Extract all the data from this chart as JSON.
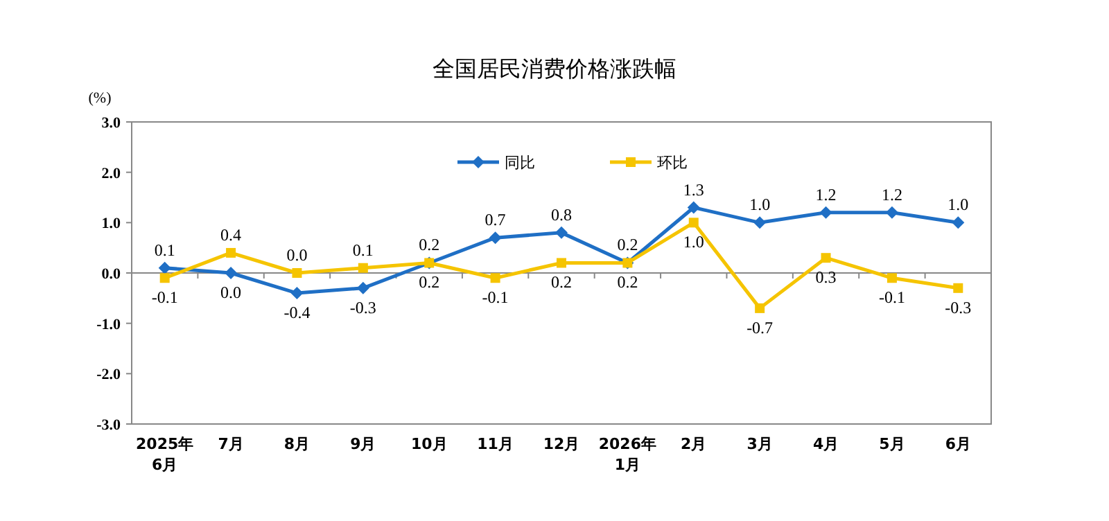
{
  "chart_data": {
    "type": "line",
    "title": "全国居民消费价格涨跌幅",
    "ylabel": "(%)",
    "categories": [
      "2025年\n6月",
      "7月",
      "8月",
      "9月",
      "10月",
      "11月",
      "12月",
      "2026年\n1月",
      "2月",
      "3月",
      "4月",
      "5月",
      "6月"
    ],
    "ylim": [
      -3,
      3
    ],
    "yticks": [
      {
        "value": 3,
        "label": "3.0"
      },
      {
        "value": 2,
        "label": "2.0"
      },
      {
        "value": 1,
        "label": "1.0"
      },
      {
        "value": 0,
        "label": "0.0"
      },
      {
        "value": -1,
        "label": "-1.0"
      },
      {
        "value": -2,
        "label": "-2.0"
      },
      {
        "value": -3,
        "label": "-3.0"
      }
    ],
    "legend": "top",
    "series": [
      {
        "name": "同比",
        "color": "#1f6fc5",
        "marker": "diamond",
        "values": [
          0.1,
          0.0,
          -0.4,
          -0.3,
          0.2,
          0.7,
          0.8,
          0.2,
          1.3,
          1.0,
          1.2,
          1.2,
          1.0
        ],
        "value_labels": [
          "0.1",
          "0.0",
          "-0.4",
          "-0.3",
          "0.2",
          "0.7",
          "0.8",
          "0.2",
          "1.3",
          "1.0",
          "1.2",
          "1.2",
          "1.0"
        ]
      },
      {
        "name": "环比",
        "color": "#f5c400",
        "marker": "square",
        "values": [
          -0.1,
          0.4,
          0.0,
          0.1,
          0.2,
          -0.1,
          0.2,
          0.2,
          1.0,
          -0.7,
          0.3,
          -0.1,
          -0.3
        ],
        "value_labels": [
          "-0.1",
          "0.4",
          "0.0",
          "0.1",
          "0.2",
          "-0.1",
          "0.2",
          "0.2",
          "1.0",
          "-0.7",
          "0.3",
          "-0.1",
          "-0.3"
        ]
      }
    ]
  }
}
